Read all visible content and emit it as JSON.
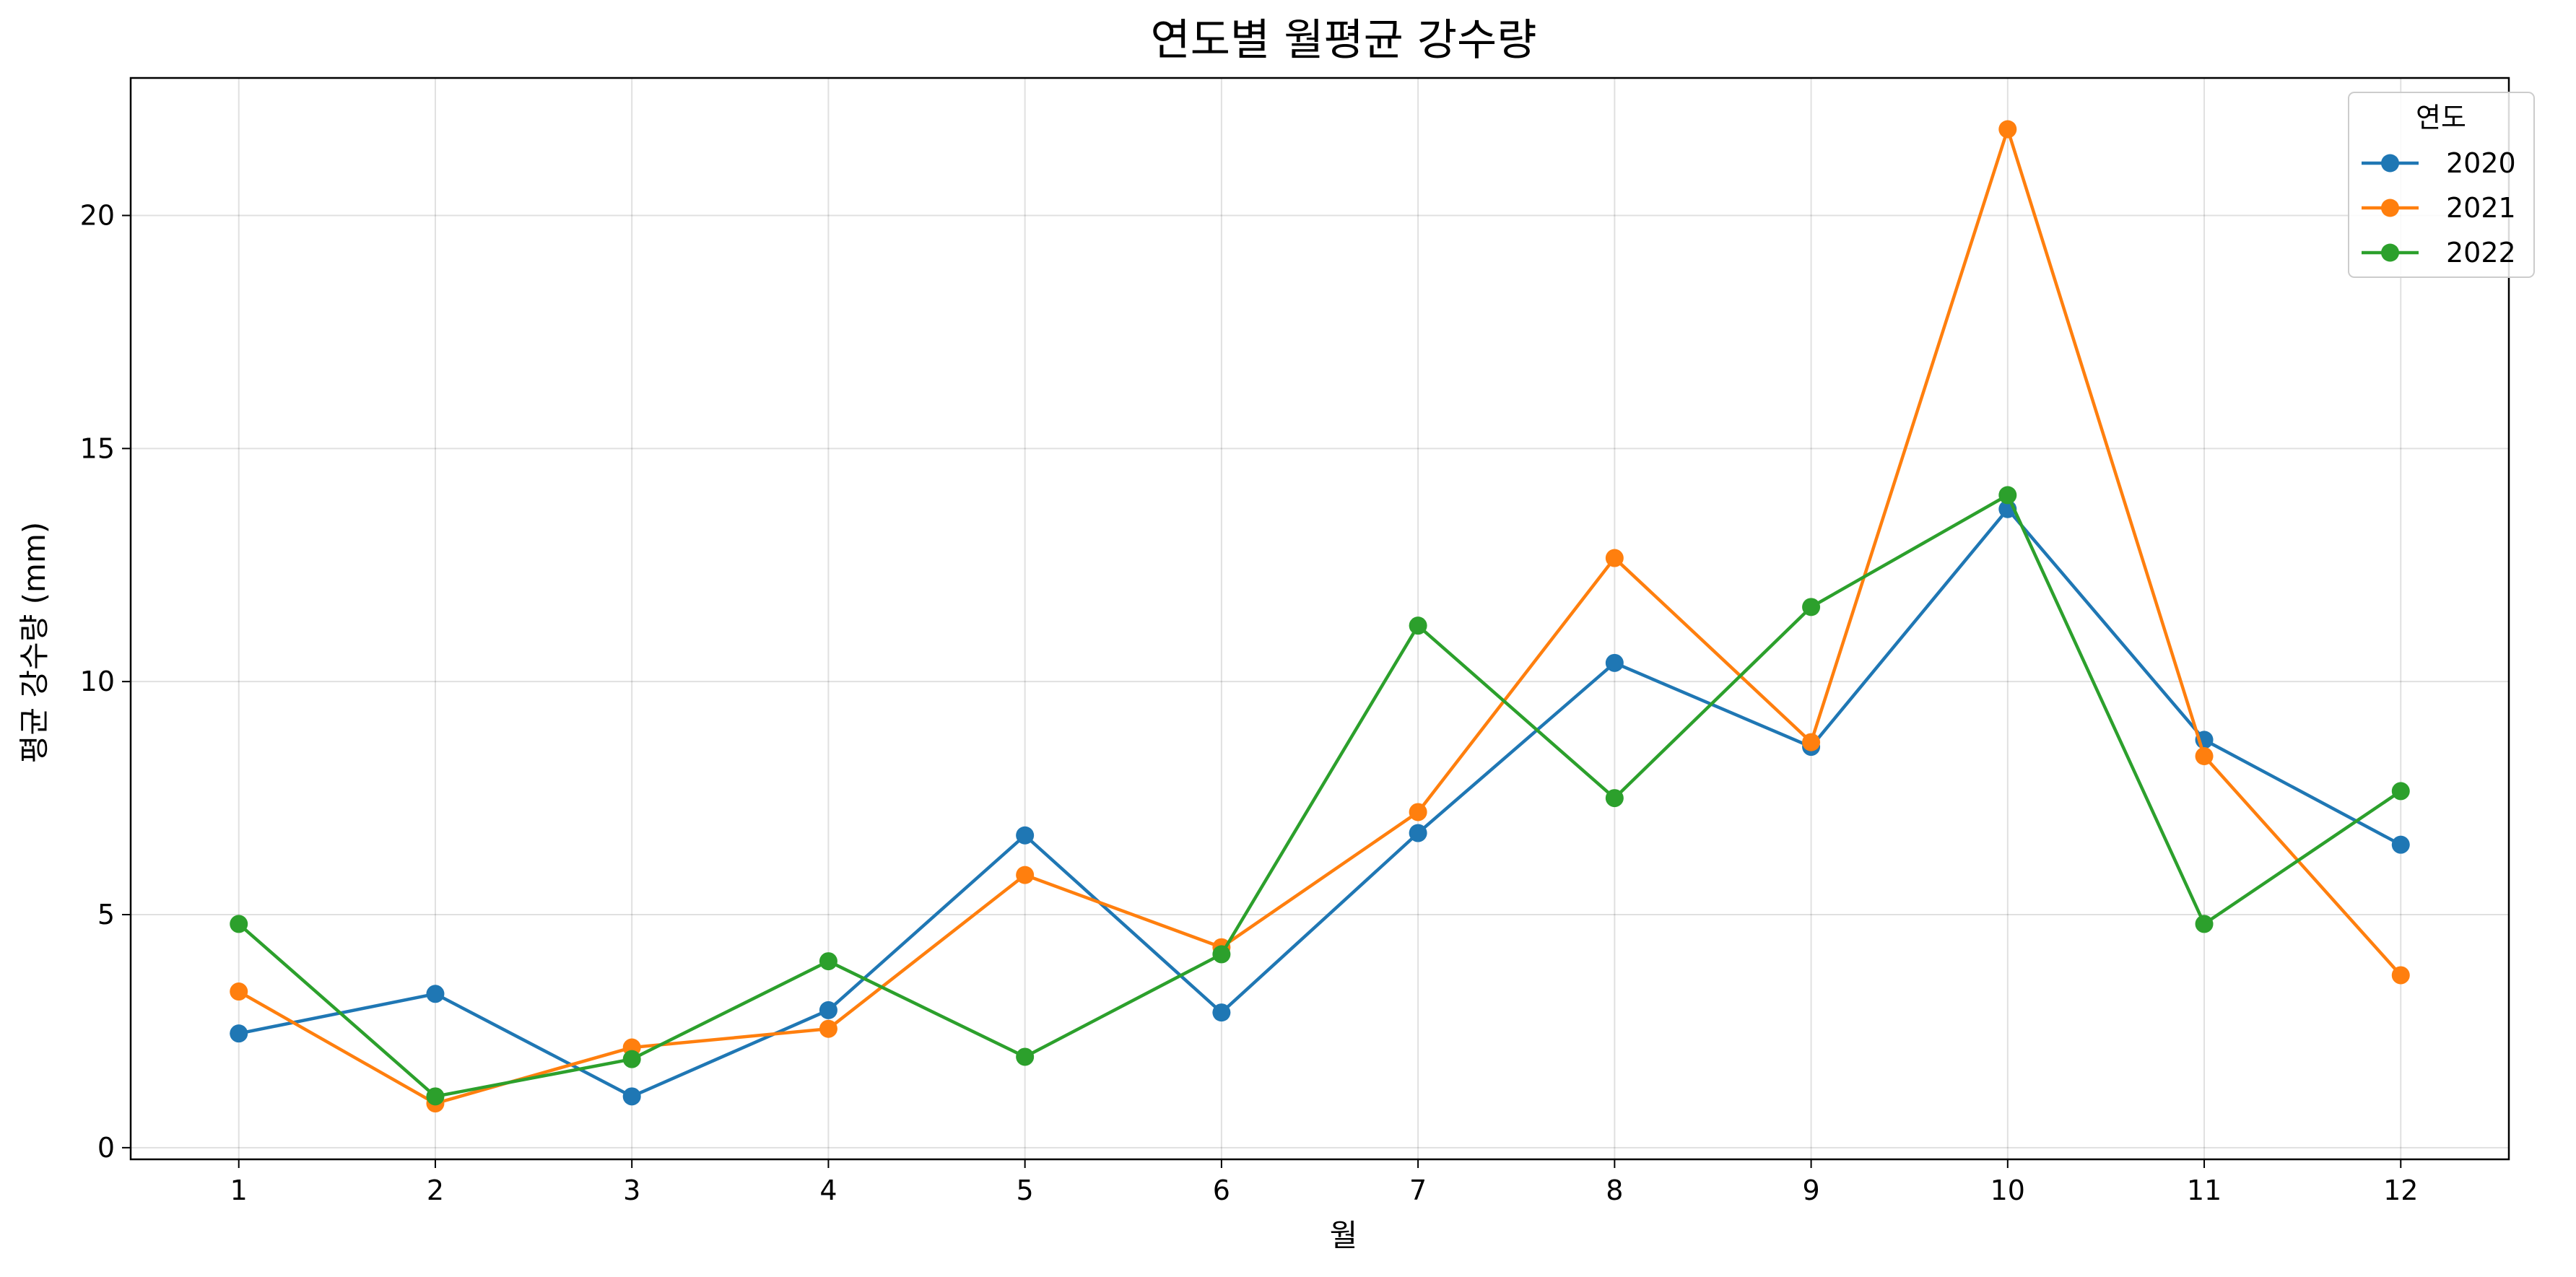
{
  "chart_data": {
    "type": "line",
    "title": "연도별 월평균 강수량",
    "xlabel": "월",
    "ylabel": "평균 강수량 (mm)",
    "x": [
      1,
      2,
      3,
      4,
      5,
      6,
      7,
      8,
      9,
      10,
      11,
      12
    ],
    "x_tick_labels": [
      "1",
      "2",
      "3",
      "4",
      "5",
      "6",
      "7",
      "8",
      "9",
      "10",
      "11",
      "12"
    ],
    "xlim": [
      0.45,
      12.55
    ],
    "ylim": [
      -0.25,
      22.95
    ],
    "y_ticks": [
      0,
      5,
      10,
      15,
      20
    ],
    "y_tick_labels": [
      "0",
      "5",
      "10",
      "15",
      "20"
    ],
    "grid": true,
    "legend": {
      "title": "연도",
      "placement": "top-right"
    },
    "series": [
      {
        "name": "2020",
        "color": "#1f77b4",
        "values": [
          2.45,
          3.3,
          1.1,
          2.95,
          6.7,
          2.9,
          6.75,
          10.4,
          8.6,
          13.7,
          8.75,
          6.5
        ]
      },
      {
        "name": "2021",
        "color": "#ff7f0e",
        "values": [
          3.35,
          0.95,
          2.15,
          2.55,
          5.85,
          4.3,
          7.2,
          12.65,
          8.7,
          21.85,
          8.4,
          3.7
        ]
      },
      {
        "name": "2022",
        "color": "#2ca02c",
        "values": [
          4.8,
          1.1,
          1.9,
          4.0,
          1.95,
          4.15,
          11.2,
          7.5,
          11.6,
          14.0,
          4.8,
          7.65
        ]
      }
    ]
  }
}
